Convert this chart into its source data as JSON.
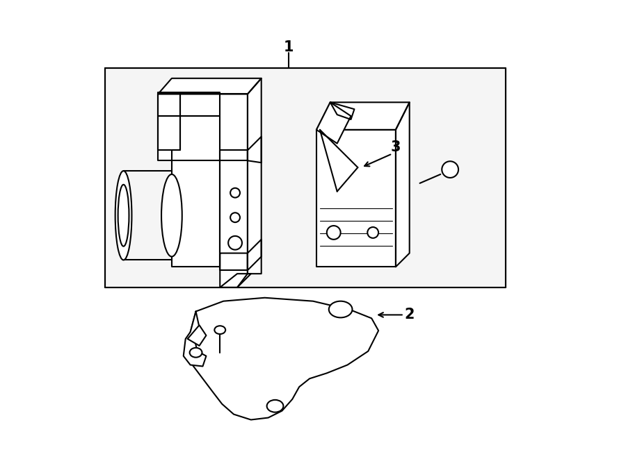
{
  "background_color": "#ffffff",
  "line_color": "#000000",
  "line_width": 1.5,
  "fig_width": 9.0,
  "fig_height": 6.61,
  "label1": "1",
  "label2": "2",
  "label3": "3"
}
